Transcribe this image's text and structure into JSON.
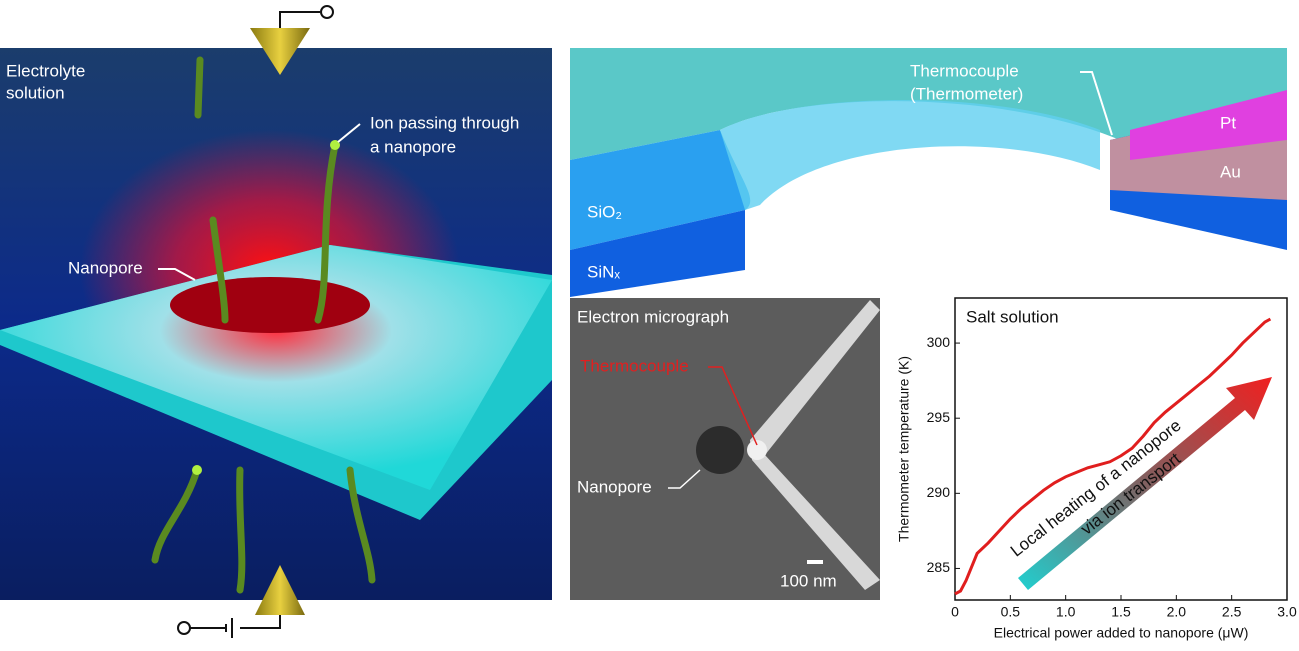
{
  "panel_a": {
    "electrolyte": [
      "Electrolyte",
      "solution"
    ],
    "ion": [
      "Ion passing through",
      "a nanopore"
    ],
    "nanopore": "Nanopore"
  },
  "panel_b": {
    "thermocouple": [
      "Thermocouple",
      "(Thermometer)"
    ],
    "pt": "Pt",
    "au": "Au",
    "sio2": "SiO₂",
    "sinx": "SiNₓ"
  },
  "panel_c": {
    "title": "Electron micrograph",
    "thermocouple": "Thermocouple",
    "nanopore": "Nanopore",
    "scale": "100 nm"
  },
  "chart_data": {
    "type": "line",
    "title": "Salt solution",
    "x_label": "Electrical power added to nanopore (μW)",
    "y_label": "Thermometer temperature (K)",
    "annotation": [
      "Local heating of a nanopore",
      "via ion transport"
    ],
    "x": [
      0,
      0.05,
      0.1,
      0.2,
      0.3,
      0.4,
      0.5,
      0.6,
      0.7,
      0.8,
      0.9,
      1.0,
      1.1,
      1.2,
      1.3,
      1.4,
      1.5,
      1.6,
      1.7,
      1.8,
      1.9,
      2.0,
      2.1,
      2.2,
      2.3,
      2.4,
      2.5,
      2.6,
      2.7,
      2.8,
      2.85
    ],
    "series": [
      {
        "color": "#e01e1e",
        "values": [
          283.3,
          283.5,
          284.2,
          286,
          286.7,
          287.5,
          288.3,
          289,
          289.6,
          290.2,
          290.7,
          291.1,
          291.4,
          291.7,
          291.9,
          292.1,
          292.5,
          293,
          293.8,
          294.7,
          295.4,
          296,
          296.6,
          297.2,
          297.8,
          298.5,
          299.2,
          300,
          300.7,
          301.4,
          301.6
        ]
      }
    ],
    "xlim": [
      0,
      3
    ],
    "ylim": [
      282.9,
      303
    ],
    "xticks": [
      0,
      0.5,
      {
        "value": 1,
        "label": "1.0"
      },
      1.5,
      {
        "value": 2,
        "label": "2.0"
      },
      2.5,
      {
        "value": 3,
        "label": "3.0"
      }
    ],
    "yticks": [
      285,
      290,
      295,
      300
    ]
  }
}
